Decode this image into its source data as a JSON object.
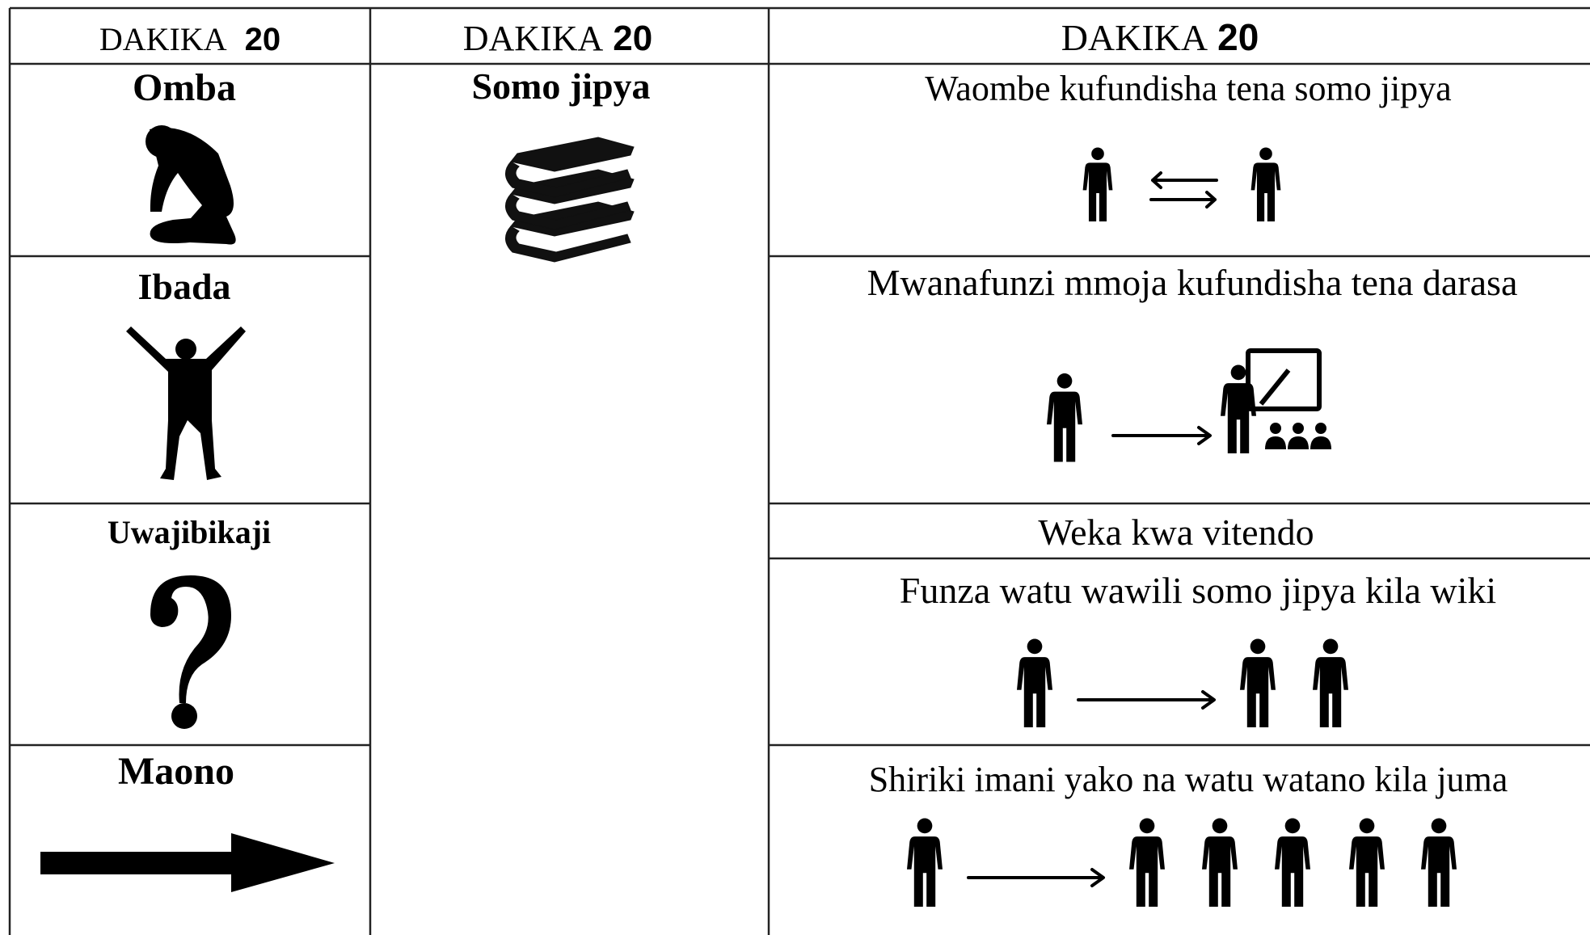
{
  "header": [
    {
      "label": "DAKIKA",
      "minutes": 20
    },
    {
      "label": "DAKIKA",
      "minutes": 20
    },
    {
      "label": "DAKIKA",
      "minutes": 20
    }
  ],
  "column1": [
    {
      "title": "Omba"
    },
    {
      "title": "Ibada"
    },
    {
      "title": "Uwajibikaji"
    },
    {
      "title": "Maono"
    }
  ],
  "column2": {
    "title": "Somo jipya"
  },
  "column3": [
    {
      "text": "Waombe  kufundisha tena somo jipya"
    },
    {
      "text": "Mwanafunzi mmoja kufundisha tena darasa"
    },
    {
      "text": "Weka kwa vitendo"
    },
    {
      "text": "Funza watu wawili somo jipya kila wiki"
    },
    {
      "text": "Shiriki imani yako na watu watano kila juma"
    }
  ]
}
